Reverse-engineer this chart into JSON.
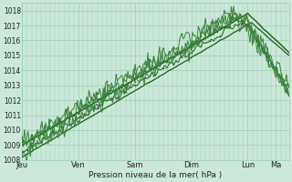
{
  "title": "",
  "xlabel": "Pression niveau de la mer( hPa )",
  "ylabel": "",
  "ylim": [
    1008,
    1018.5
  ],
  "yticks": [
    1008,
    1009,
    1010,
    1011,
    1012,
    1013,
    1014,
    1015,
    1016,
    1017,
    1018
  ],
  "xtick_labels": [
    "Jeu",
    "Ven",
    "Sam",
    "Dim",
    "Lun",
    "Ma"
  ],
  "xtick_positions": [
    0,
    48,
    96,
    144,
    192,
    216
  ],
  "background_color": "#cce8d8",
  "grid_color": "#99ccb8",
  "line_color_dark": "#1a5c1a",
  "line_color_mid": "#2a6e2a",
  "line_color_light": "#3a823a",
  "total_points": 228
}
